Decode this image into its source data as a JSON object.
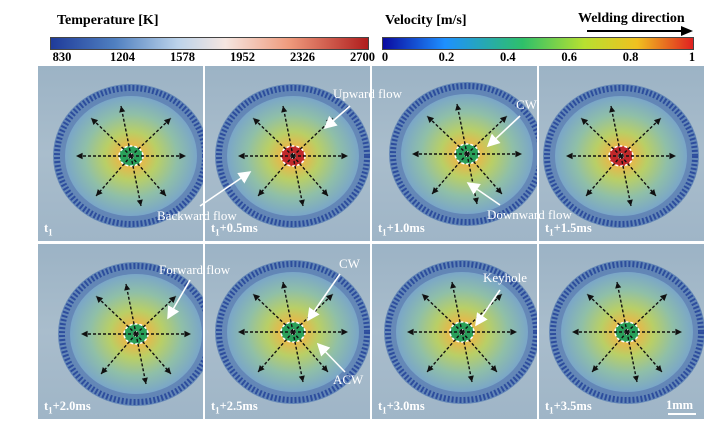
{
  "temperature_bar": {
    "title": "Temperature [K]",
    "ticks": [
      "830",
      "1204",
      "1578",
      "1952",
      "2326",
      "2700"
    ],
    "colors": [
      "#1f3b9a",
      "#5e8fc8",
      "#d9e6f2",
      "#f3c6b4",
      "#e0573a",
      "#b01d1d"
    ]
  },
  "velocity_bar": {
    "title": "Velocity [m/s]",
    "ticks": [
      "0",
      "0.2",
      "0.4",
      "0.6",
      "0.8",
      "1"
    ],
    "colors": [
      "#0a0aa0",
      "#1e90ff",
      "#2ec06a",
      "#b8e030",
      "#f0c020",
      "#e02020"
    ]
  },
  "welding_direction": "Welding direction",
  "panels": [
    {
      "base": "t",
      "sub": "1",
      "suffix": ""
    },
    {
      "base": "t",
      "sub": "1",
      "suffix": "+0.5ms"
    },
    {
      "base": "t",
      "sub": "1",
      "suffix": "+1.0ms"
    },
    {
      "base": "t",
      "sub": "1",
      "suffix": "+1.5ms"
    },
    {
      "base": "t",
      "sub": "1",
      "suffix": "+2.0ms"
    },
    {
      "base": "t",
      "sub": "1",
      "suffix": "+2.5ms"
    },
    {
      "base": "t",
      "sub": "1",
      "suffix": "+3.0ms"
    },
    {
      "base": "t",
      "sub": "1",
      "suffix": "+3.5ms"
    }
  ],
  "annotations": {
    "upward_flow": "Upward flow",
    "cw_top": "CW",
    "backward_flow": "Backward flow",
    "downward_flow": "Downward flow",
    "forward_flow": "Forward flow",
    "cw_bottom": "CW",
    "acw": "ACW",
    "keyhole": "Keyhole"
  },
  "scale_bar": "1mm"
}
